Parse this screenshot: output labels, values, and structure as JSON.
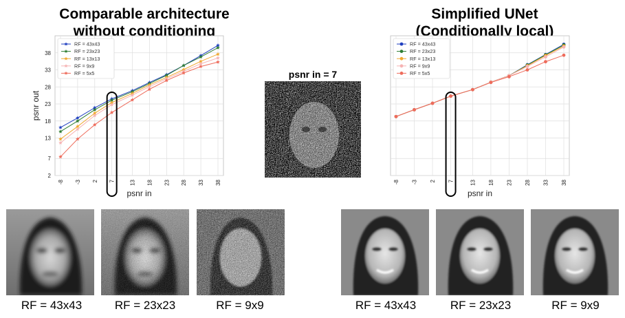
{
  "left_panel": {
    "title_line1": "Comparable architecture",
    "title_line2": "without conditioning"
  },
  "right_panel": {
    "title_line1": "Simplified UNet",
    "title_line2": "(Conditionally local)"
  },
  "center": {
    "title": "psnr in = 7"
  },
  "captions": {
    "left": [
      "RF = 43x43",
      "RF = 23x23",
      "RF = 9x9"
    ],
    "right": [
      "RF = 43x43",
      "RF = 23x23",
      "RF = 9x9"
    ]
  },
  "colors": {
    "rf43": "#1f3fbf",
    "rf23": "#2e7d32",
    "rf13": "#f0a830",
    "rf9": "#f6b3b3",
    "rf5": "#ee6b5b"
  },
  "chart_data": [
    {
      "type": "line",
      "title": "",
      "xlabel": "psnr in",
      "ylabel": "psnr out",
      "categories": [
        "-8",
        "-3",
        "2",
        "7",
        "13",
        "18",
        "23",
        "28",
        "33",
        "38"
      ],
      "x": [
        -8,
        -3,
        2,
        7,
        13,
        18,
        23,
        28,
        33,
        38
      ],
      "yticks": [
        "2",
        "7",
        "13",
        "18",
        "23",
        "28",
        "33",
        "38"
      ],
      "ylim": [
        2,
        43
      ],
      "grid": true,
      "legend": "top-left",
      "highlight_category": "7",
      "series": [
        {
          "name": "RF = 43x43",
          "color": "#1f3fbf",
          "marker": "star",
          "values": [
            16.1,
            18.9,
            21.9,
            24.5,
            26.9,
            29.3,
            31.6,
            34.3,
            37.2,
            40.2
          ]
        },
        {
          "name": "RF = 23x23",
          "color": "#2e7d32",
          "marker": "star",
          "values": [
            14.9,
            18.0,
            21.3,
            24.1,
            26.6,
            29.0,
            31.4,
            34.3,
            36.8,
            39.5
          ]
        },
        {
          "name": "RF = 13x13",
          "color": "#f0a830",
          "marker": "star",
          "values": [
            12.7,
            16.4,
            20.3,
            23.4,
            26.1,
            28.6,
            30.8,
            33.1,
            35.5,
            37.6
          ]
        },
        {
          "name": "RF = 9x9",
          "color": "#f6b3b3",
          "marker": "star",
          "values": [
            11.6,
            15.6,
            19.6,
            22.8,
            25.6,
            28.1,
            30.4,
            32.6,
            34.8,
            36.5
          ]
        },
        {
          "name": "RF = 5x5",
          "color": "#ee6b5b",
          "marker": "star",
          "values": [
            7.5,
            12.7,
            16.9,
            20.5,
            24.2,
            27.3,
            29.9,
            32.1,
            34.0,
            35.3
          ]
        }
      ]
    },
    {
      "type": "line",
      "title": "",
      "xlabel": "psnr in",
      "ylabel": "",
      "categories": [
        "-8",
        "-3",
        "2",
        "7",
        "13",
        "18",
        "23",
        "28",
        "33",
        "38"
      ],
      "x": [
        -8,
        -3,
        2,
        7,
        13,
        18,
        23,
        28,
        33,
        38
      ],
      "yticks": [],
      "ylim": [
        2,
        43
      ],
      "grid": true,
      "legend": "top-left",
      "highlight_category": "7",
      "series": [
        {
          "name": "RF = 43x43",
          "color": "#1f3fbf",
          "marker": "circle",
          "values": [
            19.3,
            21.3,
            23.2,
            25.3,
            27.2,
            29.4,
            31.3,
            34.5,
            37.5,
            40.5
          ]
        },
        {
          "name": "RF = 23x23",
          "color": "#2e7d32",
          "marker": "circle",
          "values": [
            19.3,
            21.3,
            23.2,
            25.3,
            27.2,
            29.4,
            31.3,
            34.4,
            37.4,
            40.3
          ]
        },
        {
          "name": "RF = 13x13",
          "color": "#f0a830",
          "marker": "circle",
          "values": [
            19.3,
            21.3,
            23.2,
            25.3,
            27.2,
            29.4,
            31.3,
            34.2,
            37.2,
            40.0
          ]
        },
        {
          "name": "RF = 9x9",
          "color": "#f6b3b3",
          "marker": "circle",
          "values": [
            19.3,
            21.3,
            23.2,
            25.3,
            27.2,
            29.4,
            31.3,
            34.0,
            36.8,
            39.7
          ]
        },
        {
          "name": "RF = 5x5",
          "color": "#ee6b5b",
          "marker": "circle",
          "values": [
            19.3,
            21.3,
            23.2,
            25.3,
            27.2,
            29.3,
            31.0,
            33.0,
            35.4,
            37.3
          ]
        }
      ]
    }
  ]
}
